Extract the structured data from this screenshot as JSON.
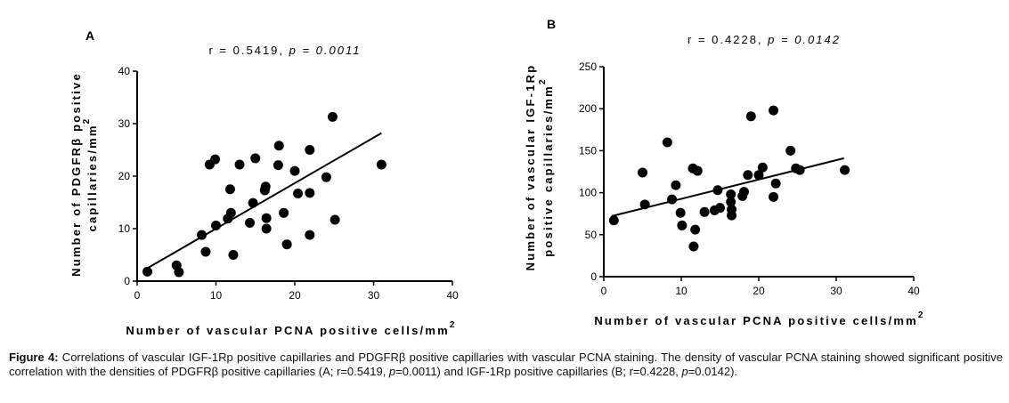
{
  "chart_data": [
    {
      "type": "scatter",
      "panel": "A",
      "stat": "r = 0.5419, p = 0.0011",
      "r_label": "r = 0.5419, ",
      "p_label": "p = 0.0011",
      "xlabel": "Number of vascular PCNA positive cells/mm",
      "xlabel_sup": "2",
      "ylabel_line1": "Number of PDGFRβ positive",
      "ylabel_line2": "capillaries/mm",
      "ylabel_sup": "2",
      "xlim": [
        0,
        40
      ],
      "ylim": [
        0,
        40
      ],
      "xticks": [
        0,
        10,
        20,
        30,
        40
      ],
      "yticks": [
        0,
        10,
        20,
        30,
        40
      ],
      "regression": {
        "x": [
          1,
          31
        ],
        "y": [
          2.2,
          28.2
        ]
      },
      "points": [
        {
          "x": 1.3,
          "y": 1.8
        },
        {
          "x": 5.0,
          "y": 3.0
        },
        {
          "x": 5.3,
          "y": 1.7
        },
        {
          "x": 8.2,
          "y": 8.8
        },
        {
          "x": 8.7,
          "y": 5.6
        },
        {
          "x": 9.2,
          "y": 22.2
        },
        {
          "x": 9.9,
          "y": 23.2
        },
        {
          "x": 10.0,
          "y": 10.6
        },
        {
          "x": 11.5,
          "y": 11.9
        },
        {
          "x": 11.8,
          "y": 17.5
        },
        {
          "x": 11.9,
          "y": 13.0
        },
        {
          "x": 12.2,
          "y": 5.0
        },
        {
          "x": 13.0,
          "y": 22.2
        },
        {
          "x": 14.3,
          "y": 11.1
        },
        {
          "x": 14.7,
          "y": 14.9
        },
        {
          "x": 15.0,
          "y": 23.4
        },
        {
          "x": 16.2,
          "y": 17.3
        },
        {
          "x": 16.3,
          "y": 18.0
        },
        {
          "x": 16.4,
          "y": 12.0
        },
        {
          "x": 16.4,
          "y": 10.0
        },
        {
          "x": 17.9,
          "y": 22.1
        },
        {
          "x": 18.0,
          "y": 25.8
        },
        {
          "x": 18.6,
          "y": 13.0
        },
        {
          "x": 19.0,
          "y": 7.0
        },
        {
          "x": 20.0,
          "y": 21.0
        },
        {
          "x": 20.4,
          "y": 16.7
        },
        {
          "x": 21.9,
          "y": 25.0
        },
        {
          "x": 21.9,
          "y": 16.8
        },
        {
          "x": 21.9,
          "y": 8.8
        },
        {
          "x": 24.0,
          "y": 19.8
        },
        {
          "x": 24.8,
          "y": 31.3
        },
        {
          "x": 25.1,
          "y": 11.7
        },
        {
          "x": 31.0,
          "y": 22.2
        }
      ]
    },
    {
      "type": "scatter",
      "panel": "B",
      "stat": "r = 0.4228, p = 0.0142",
      "r_label": "r = 0.4228, ",
      "p_label": "p = 0.0142",
      "xlabel": "Number of vascular PCNA positive cells/mm",
      "xlabel_sup": "2",
      "ylabel_line1": "Number of vascular IGF-1Rp",
      "ylabel_line2": "positive capillaries/mm",
      "ylabel_sup": "2",
      "xlim": [
        0,
        40
      ],
      "ylim": [
        0,
        250
      ],
      "xticks": [
        0,
        10,
        20,
        30,
        40
      ],
      "yticks": [
        0,
        50,
        100,
        150,
        200,
        250
      ],
      "regression": {
        "x": [
          1,
          31
        ],
        "y": [
          72,
          141
        ]
      },
      "points": [
        {
          "x": 1.3,
          "y": 67
        },
        {
          "x": 5.0,
          "y": 124
        },
        {
          "x": 5.3,
          "y": 86
        },
        {
          "x": 8.2,
          "y": 160
        },
        {
          "x": 8.8,
          "y": 92
        },
        {
          "x": 9.3,
          "y": 109
        },
        {
          "x": 9.9,
          "y": 76
        },
        {
          "x": 10.1,
          "y": 61
        },
        {
          "x": 11.5,
          "y": 129
        },
        {
          "x": 11.6,
          "y": 36
        },
        {
          "x": 11.8,
          "y": 56
        },
        {
          "x": 12.1,
          "y": 126
        },
        {
          "x": 13.0,
          "y": 77
        },
        {
          "x": 14.3,
          "y": 79
        },
        {
          "x": 14.7,
          "y": 103
        },
        {
          "x": 15.0,
          "y": 82
        },
        {
          "x": 16.4,
          "y": 98
        },
        {
          "x": 16.4,
          "y": 89
        },
        {
          "x": 16.5,
          "y": 80
        },
        {
          "x": 16.5,
          "y": 73
        },
        {
          "x": 17.9,
          "y": 96
        },
        {
          "x": 18.1,
          "y": 101
        },
        {
          "x": 18.6,
          "y": 121
        },
        {
          "x": 19.0,
          "y": 191
        },
        {
          "x": 20.0,
          "y": 121
        },
        {
          "x": 20.5,
          "y": 130
        },
        {
          "x": 21.9,
          "y": 198
        },
        {
          "x": 21.9,
          "y": 95
        },
        {
          "x": 22.2,
          "y": 111
        },
        {
          "x": 24.1,
          "y": 150
        },
        {
          "x": 24.8,
          "y": 129
        },
        {
          "x": 25.3,
          "y": 127
        },
        {
          "x": 31.1,
          "y": 127
        }
      ]
    }
  ],
  "caption": {
    "label": "Figure 4:",
    "text_1": " Correlations of vascular IGF-1Rp positive capillaries and PDGFRβ positive capillaries with vascular PCNA staining. The density of vascular PCNA staining showed significant positive correlation with the densities of PDGFRβ positive capillaries (A; r=0.5419, ",
    "p1": "p",
    "text_2": "=0.0011) and IGF-1Rp positive capillaries (B; r=0.4228, ",
    "p2": "p",
    "text_3": "=0.0142)."
  }
}
